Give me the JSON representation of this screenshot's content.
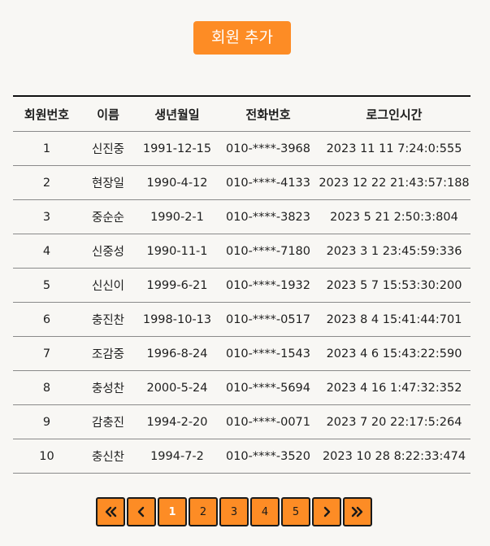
{
  "toolbar": {
    "add_member_label": "회원 추가"
  },
  "table": {
    "headers": {
      "id": "회원번호",
      "name": "이름",
      "birth": "생년월일",
      "phone": "전화번호",
      "login": "로그인시간"
    },
    "rows": [
      {
        "id": "1",
        "name": "신진중",
        "birth": "1991-12-15",
        "phone": "010-****-3968",
        "login": "2023 11 11 7:24:0:555"
      },
      {
        "id": "2",
        "name": "현장일",
        "birth": "1990-4-12",
        "phone": "010-****-4133",
        "login": "2023 12 22 21:43:57:188"
      },
      {
        "id": "3",
        "name": "중순순",
        "birth": "1990-2-1",
        "phone": "010-****-3823",
        "login": "2023 5 21 2:50:3:804"
      },
      {
        "id": "4",
        "name": "신중성",
        "birth": "1990-11-1",
        "phone": "010-****-7180",
        "login": "2023 3 1 23:45:59:336"
      },
      {
        "id": "5",
        "name": "신신이",
        "birth": "1999-6-21",
        "phone": "010-****-1932",
        "login": "2023 5 7 15:53:30:200"
      },
      {
        "id": "6",
        "name": "충진찬",
        "birth": "1998-10-13",
        "phone": "010-****-0517",
        "login": "2023 8 4 15:41:44:701"
      },
      {
        "id": "7",
        "name": "조감중",
        "birth": "1996-8-24",
        "phone": "010-****-1543",
        "login": "2023 4 6 15:43:22:590"
      },
      {
        "id": "8",
        "name": "충성찬",
        "birth": "2000-5-24",
        "phone": "010-****-5694",
        "login": "2023 4 16 1:47:32:352"
      },
      {
        "id": "9",
        "name": "감충진",
        "birth": "1994-2-20",
        "phone": "010-****-0071",
        "login": "2023 7 20 22:17:5:264"
      },
      {
        "id": "10",
        "name": "충신찬",
        "birth": "1994-7-2",
        "phone": "010-****-3520",
        "login": "2023 10 28 8:22:33:474"
      }
    ]
  },
  "pagination": {
    "pages": [
      "1",
      "2",
      "3",
      "4",
      "5"
    ],
    "current_page": "1",
    "first_icon": "double-chevron-left-icon",
    "prev_icon": "chevron-left-icon",
    "next_icon": "chevron-right-icon",
    "last_icon": "double-chevron-right-icon"
  },
  "colors": {
    "accent": "#fd8c25",
    "background": "#f8f7f4",
    "border": "#8a8a8a"
  }
}
